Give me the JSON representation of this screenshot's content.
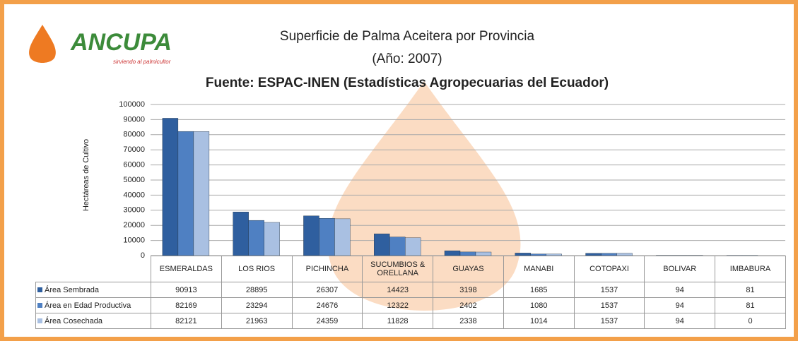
{
  "logo": {
    "name": "ANCUPA",
    "tagline": "sirviendo al palmicultor"
  },
  "chart_data": {
    "type": "bar",
    "title": "Superficie de Palma Aceitera por Provincia",
    "subtitle": "(Año: 2007)",
    "source": "Fuente: ESPAC-INEN (Estadísticas Agropecuarias del Ecuador)",
    "y_label": "Hectáreas de Cultivo",
    "categories": [
      "ESMERALDAS",
      "LOS RIOS",
      "PICHINCHA",
      "SUCUMBIOS & ORELLANA",
      "GUAYAS",
      "MANABI",
      "COTOPAXI",
      "BOLIVAR",
      "IMBABURA"
    ],
    "series": [
      {
        "name": "Área Sembrada",
        "color": "#2f5f9f",
        "values": [
          90913,
          28895,
          26307,
          14423,
          3198,
          1685,
          1537,
          94,
          81
        ]
      },
      {
        "name": "Área en Edad Productiva",
        "color": "#4f80c2",
        "values": [
          82169,
          23294,
          24676,
          12322,
          2402,
          1080,
          1537,
          94,
          81
        ]
      },
      {
        "name": "Área Cosechada",
        "color": "#a9c0e2",
        "values": [
          82121,
          21963,
          24359,
          11828,
          2338,
          1014,
          1537,
          94,
          0
        ]
      }
    ],
    "ylim": [
      0,
      100000
    ],
    "yticks": [
      0,
      10000,
      20000,
      30000,
      40000,
      50000,
      60000,
      70000,
      80000,
      90000,
      100000
    ],
    "grid": true
  }
}
